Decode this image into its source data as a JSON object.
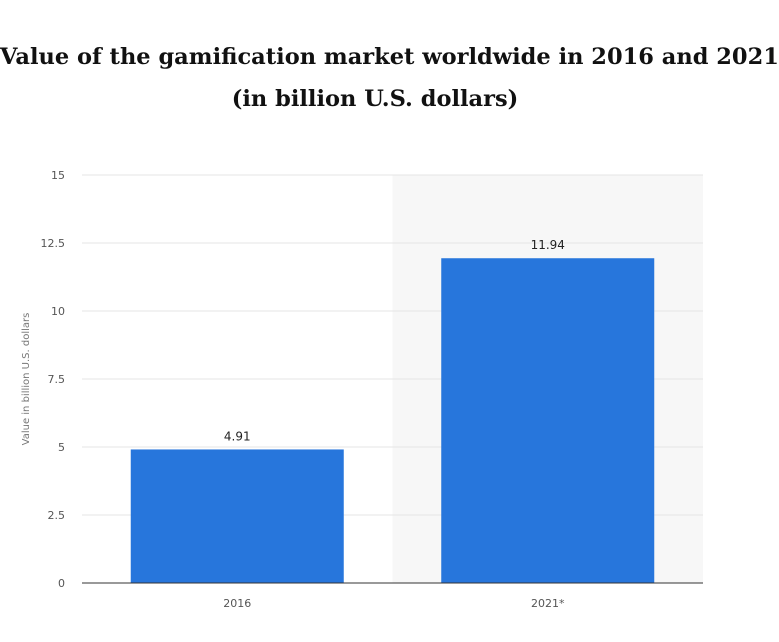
{
  "chart_data": {
    "type": "bar",
    "title": "Value of the gamification market worldwide in 2016 and 2021",
    "subtitle": "(in billion U.S. dollars)",
    "ylabel": "Value in billion U.S. dollars",
    "xlabel": "",
    "categories": [
      "2016",
      "2021*"
    ],
    "values": [
      4.91,
      11.94
    ],
    "value_labels": [
      "4.91",
      "11.94"
    ],
    "ylim": [
      0,
      15
    ],
    "yticks": [
      0,
      2.5,
      5,
      7.5,
      10,
      12.5,
      15
    ],
    "ytick_labels": [
      "0",
      "2.5",
      "5",
      "7.5",
      "10",
      "12.5",
      "15"
    ],
    "grid": true,
    "highlighted_category": "2021*",
    "colors": {
      "bar": "#2776dc",
      "grid": "#e6e6e6",
      "highlight_band": "#f7f7f7",
      "axis": "#333333"
    }
  }
}
